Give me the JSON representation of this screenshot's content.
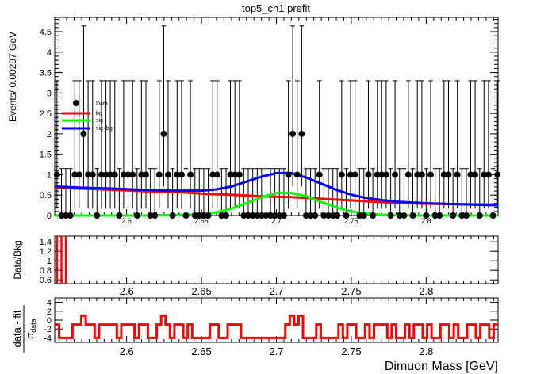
{
  "chart_data": {
    "type": "scatter",
    "title": "top5_ch1   prefit",
    "xlabel": "Dimuon Mass [GeV]",
    "xlim": [
      2.552,
      2.848
    ],
    "colors": {
      "data": "#000000",
      "bg": "#ff0000",
      "sig": "#00ff00",
      "sigbg": "#0000ff"
    },
    "main": {
      "ylabel": "Events/ 0.00297 GeV",
      "ylim": [
        0,
        4.85
      ],
      "yticks": [
        0,
        0.5,
        1,
        1.5,
        2,
        2.5,
        3,
        3.5,
        4,
        4.5
      ],
      "yticklabels": [
        "0",
        "0.5",
        "1",
        "1.5",
        "2",
        "2.5",
        "3",
        "3.5",
        "4",
        "4.5"
      ],
      "xticks": [
        2.6,
        2.65,
        2.7,
        2.75,
        2.8
      ],
      "xticklabels": [
        "2.6",
        "2.65",
        "2.7",
        "2.75",
        "2.8"
      ],
      "legend": {
        "position": "top-left",
        "entries": [
          "Data",
          "bg",
          "sig",
          "sig+bg"
        ]
      },
      "data_points": {
        "x": [
          2.5535,
          2.5565,
          2.5594,
          2.5624,
          2.5654,
          2.5683,
          2.5713,
          2.5743,
          2.5773,
          2.5802,
          2.5832,
          2.5862,
          2.5891,
          2.5921,
          2.5951,
          2.598,
          2.601,
          2.604,
          2.607,
          2.6099,
          2.6129,
          2.6159,
          2.6188,
          2.6218,
          2.6248,
          2.6277,
          2.6307,
          2.6337,
          2.6367,
          2.6396,
          2.6426,
          2.6456,
          2.6485,
          2.6515,
          2.6545,
          2.6575,
          2.6604,
          2.6634,
          2.6664,
          2.6693,
          2.6723,
          2.6753,
          2.6782,
          2.6812,
          2.6842,
          2.6872,
          2.6901,
          2.6931,
          2.6961,
          2.699,
          2.702,
          2.705,
          2.708,
          2.7109,
          2.7139,
          2.7169,
          2.7198,
          2.7228,
          2.7258,
          2.7287,
          2.7317,
          2.7347,
          2.7377,
          2.7406,
          2.7436,
          2.7466,
          2.7495,
          2.7525,
          2.7555,
          2.7584,
          2.7614,
          2.7644,
          2.7674,
          2.7703,
          2.7733,
          2.7763,
          2.7792,
          2.7822,
          2.7852,
          2.7881,
          2.7911,
          2.7941,
          2.7971,
          2.8,
          2.803,
          2.806,
          2.8089,
          2.8119,
          2.8149,
          2.8179,
          2.8208,
          2.8238,
          2.8268,
          2.8297,
          2.8327,
          2.8357,
          2.8386,
          2.8416,
          2.8446,
          2.8476
        ],
        "y": [
          1,
          0,
          0,
          0,
          1,
          1,
          2,
          1,
          1,
          0,
          1,
          1,
          1,
          1,
          0,
          1,
          1,
          1,
          0,
          1,
          1,
          0,
          0,
          1,
          2,
          1,
          0,
          1,
          1,
          0,
          1,
          0,
          0,
          0,
          0,
          1,
          1,
          0,
          0,
          1,
          1,
          1,
          0,
          0,
          0,
          0,
          0,
          0,
          0,
          0,
          0,
          0,
          1,
          2,
          1,
          2,
          0,
          0,
          0,
          1,
          0,
          0,
          0,
          0,
          1,
          0,
          1,
          1,
          0,
          0,
          1,
          0,
          1,
          1,
          1,
          0,
          1,
          0,
          0,
          1,
          0,
          1,
          1,
          0,
          1,
          0,
          0,
          1,
          1,
          0,
          1,
          0,
          0,
          1,
          1,
          0,
          1,
          1,
          0,
          1
        ],
        "yerr_low": [
          0.83,
          0,
          0,
          0,
          0.83,
          0.83,
          1.29,
          0.83,
          0.83,
          0,
          0.83,
          0.83,
          0.83,
          0.83,
          0,
          0.83,
          0.83,
          0.83,
          0,
          0.83,
          0.83,
          0,
          0,
          0.83,
          1.29,
          0.83,
          0,
          0.83,
          0.83,
          0,
          0.83,
          0,
          0,
          0,
          0,
          0.83,
          0.83,
          0,
          0,
          0.83,
          0.83,
          0.83,
          0,
          0,
          0,
          0,
          0,
          0,
          0,
          0,
          0,
          0,
          0.83,
          1.29,
          0.83,
          1.29,
          0,
          0,
          0,
          0.83,
          0,
          0,
          0,
          0,
          0.83,
          0,
          0.83,
          0.83,
          0,
          0,
          0.83,
          0,
          0.83,
          0.83,
          0.83,
          0,
          0.83,
          0,
          0,
          0.83,
          0,
          0.83,
          0.83,
          0,
          0.83,
          0,
          0,
          0.83,
          0.83,
          0,
          0.83,
          0,
          0,
          0.83,
          0.83,
          0,
          0.83,
          0.83,
          0,
          0.83
        ],
        "yerr_high": [
          2.3,
          1.15,
          1.15,
          1.15,
          2.3,
          2.3,
          2.64,
          2.3,
          2.3,
          1.15,
          2.3,
          2.3,
          2.3,
          2.3,
          1.15,
          2.3,
          2.3,
          2.3,
          1.15,
          2.3,
          2.3,
          1.15,
          1.15,
          2.3,
          2.64,
          2.3,
          1.15,
          2.3,
          2.3,
          1.15,
          2.3,
          1.15,
          1.15,
          1.15,
          1.15,
          2.3,
          2.3,
          1.15,
          1.15,
          2.3,
          2.3,
          2.3,
          1.15,
          1.15,
          1.15,
          1.15,
          1.15,
          1.15,
          1.15,
          1.15,
          1.15,
          1.15,
          2.3,
          2.64,
          2.3,
          2.64,
          1.15,
          1.15,
          1.15,
          2.3,
          1.15,
          1.15,
          1.15,
          1.15,
          2.3,
          1.15,
          2.3,
          2.3,
          1.15,
          1.15,
          2.3,
          1.15,
          2.3,
          2.3,
          2.3,
          1.15,
          2.3,
          1.15,
          1.15,
          2.3,
          1.15,
          2.3,
          2.3,
          1.15,
          2.3,
          1.15,
          1.15,
          2.3,
          2.3,
          1.15,
          2.3,
          1.15,
          1.15,
          2.3,
          2.3,
          1.15,
          2.3,
          2.3,
          1.15,
          2.3
        ]
      },
      "curves": {
        "x": [
          2.552,
          2.57,
          2.59,
          2.61,
          2.63,
          2.65,
          2.66,
          2.67,
          2.68,
          2.69,
          2.7,
          2.71,
          2.72,
          2.73,
          2.74,
          2.75,
          2.76,
          2.77,
          2.78,
          2.79,
          2.8,
          2.82,
          2.848
        ],
        "bg": [
          0.68,
          0.66,
          0.63,
          0.6,
          0.58,
          0.54,
          0.52,
          0.51,
          0.49,
          0.47,
          0.46,
          0.45,
          0.43,
          0.41,
          0.39,
          0.37,
          0.35,
          0.33,
          0.31,
          0.3,
          0.29,
          0.28,
          0.27
        ],
        "sig": [
          0.0,
          0.0,
          0.0,
          0.0,
          0.01,
          0.03,
          0.08,
          0.17,
          0.3,
          0.45,
          0.55,
          0.55,
          0.47,
          0.33,
          0.2,
          0.1,
          0.05,
          0.02,
          0.01,
          0.0,
          0.0,
          0.0,
          0.0
        ],
        "sigbg": [
          0.71,
          0.68,
          0.66,
          0.63,
          0.61,
          0.61,
          0.64,
          0.71,
          0.83,
          0.95,
          1.04,
          1.04,
          0.93,
          0.78,
          0.63,
          0.51,
          0.43,
          0.38,
          0.34,
          0.32,
          0.3,
          0.28,
          0.25
        ]
      }
    },
    "ratio": {
      "ylabel": "Data/Bkg",
      "ylim": [
        0.52,
        1.52
      ],
      "yticks": [
        0.6,
        0.8,
        1.0,
        1.2,
        1.4
      ],
      "yticklabels": [
        "0.6",
        "0.8",
        "1",
        "1.2",
        "1.4"
      ],
      "xticks": [
        2.6,
        2.65,
        2.7,
        2.75,
        2.8
      ],
      "xticklabels": [
        "2.6",
        "2.65",
        "2.7",
        "2.75",
        "2.8"
      ],
      "bars_x": [
        2.5535,
        2.5565,
        2.5594
      ]
    },
    "pull": {
      "ylabel_top": "data - fit",
      "ylabel_bottom": "σ",
      "ylabel_sub": "data",
      "ylim": [
        -5,
        5
      ],
      "yticks": [
        -4,
        -2,
        0,
        2,
        4
      ],
      "yticklabels": [
        "-4",
        "-2",
        "0",
        "2",
        "4"
      ],
      "xticks": [
        2.6,
        2.65,
        2.7,
        2.75,
        2.8
      ],
      "xticklabels": [
        "2.6",
        "2.65",
        "2.7",
        "2.75",
        "2.8"
      ],
      "levels": {
        "zero": -4,
        "one": -1,
        "two": 1
      }
    }
  }
}
